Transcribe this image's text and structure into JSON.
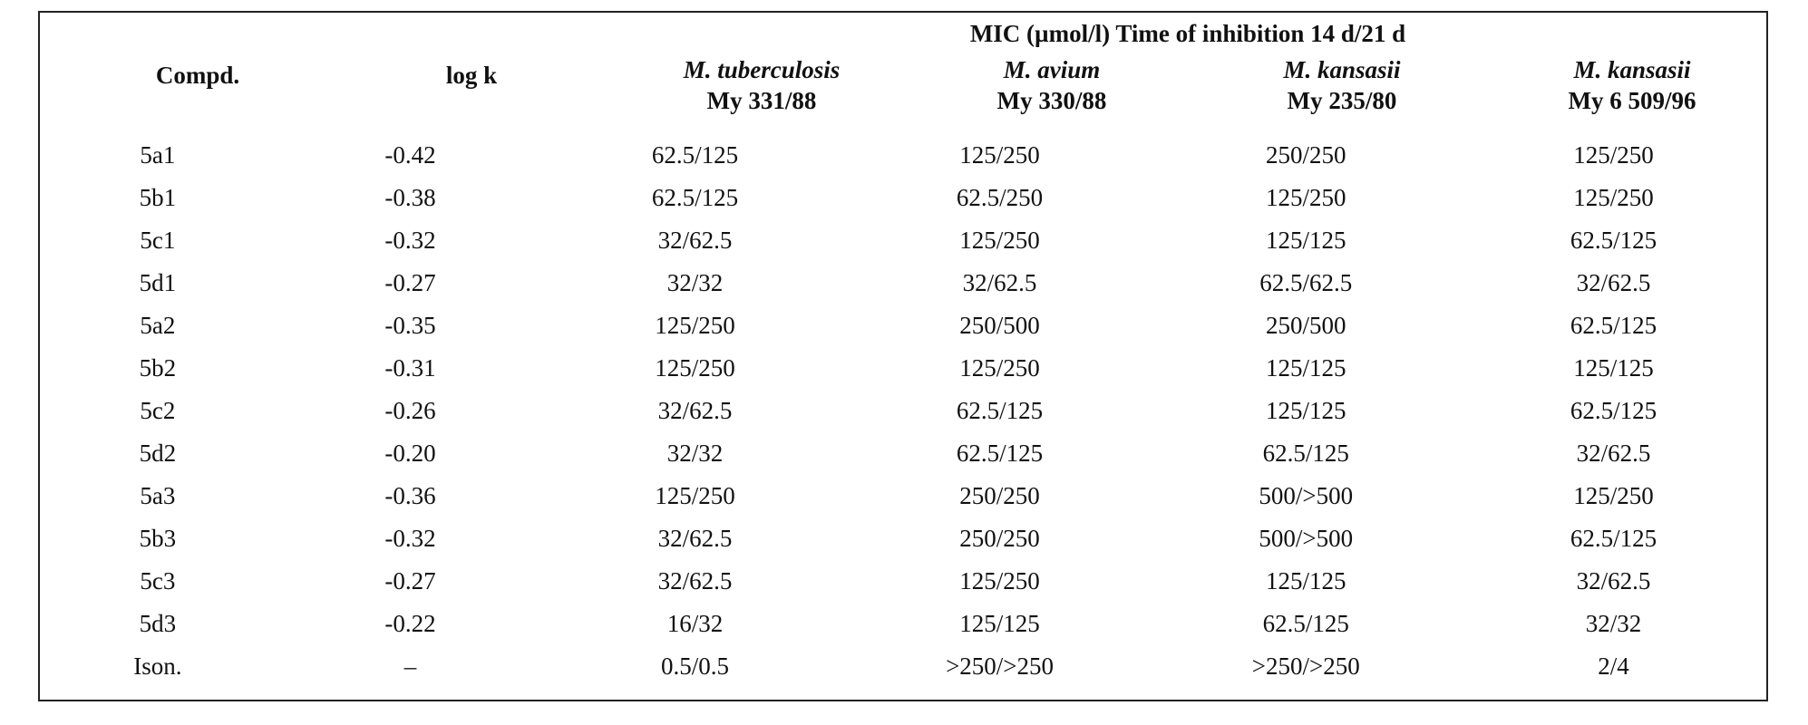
{
  "table": {
    "group_header": "MIC (µmol/l) Time of inhibition 14 d/21 d",
    "headers": {
      "compd": "Compd.",
      "logk": "log k",
      "col1": {
        "species": "M. tuberculosis",
        "strain": "My 331/88"
      },
      "col2": {
        "species": "M. avium",
        "strain": "My 330/88"
      },
      "col3": {
        "species": "M. kansasii",
        "strain": "My 235/80"
      },
      "col4": {
        "species": "M. kansasii",
        "strain": "My 6 509/96"
      }
    },
    "rows": [
      [
        "5a1",
        "-0.42",
        "62.5/125",
        "125/250",
        "250/250",
        "125/250"
      ],
      [
        "5b1",
        "-0.38",
        "62.5/125",
        "62.5/250",
        "125/250",
        "125/250"
      ],
      [
        "5c1",
        "-0.32",
        "32/62.5",
        "125/250",
        "125/125",
        "62.5/125"
      ],
      [
        "5d1",
        "-0.27",
        "32/32",
        "32/62.5",
        "62.5/62.5",
        "32/62.5"
      ],
      [
        "5a2",
        "-0.35",
        "125/250",
        "250/500",
        "250/500",
        "62.5/125"
      ],
      [
        "5b2",
        "-0.31",
        "125/250",
        "125/250",
        "125/125",
        "125/125"
      ],
      [
        "5c2",
        "-0.26",
        "32/62.5",
        "62.5/125",
        "125/125",
        "62.5/125"
      ],
      [
        "5d2",
        "-0.20",
        "32/32",
        "62.5/125",
        "62.5/125",
        "32/62.5"
      ],
      [
        "5a3",
        "-0.36",
        "125/250",
        "250/250",
        "500/>500",
        "125/250"
      ],
      [
        "5b3",
        "-0.32",
        "32/62.5",
        "250/250",
        "500/>500",
        "62.5/125"
      ],
      [
        "5c3",
        "-0.27",
        "32/62.5",
        "125/250",
        "125/125",
        "32/62.5"
      ],
      [
        "5d3",
        "-0.22",
        "16/32",
        "125/125",
        "62.5/125",
        "32/32"
      ],
      [
        "Ison.",
        "–",
        "0.5/0.5",
        ">250/>250",
        ">250/>250",
        "2/4"
      ]
    ]
  }
}
